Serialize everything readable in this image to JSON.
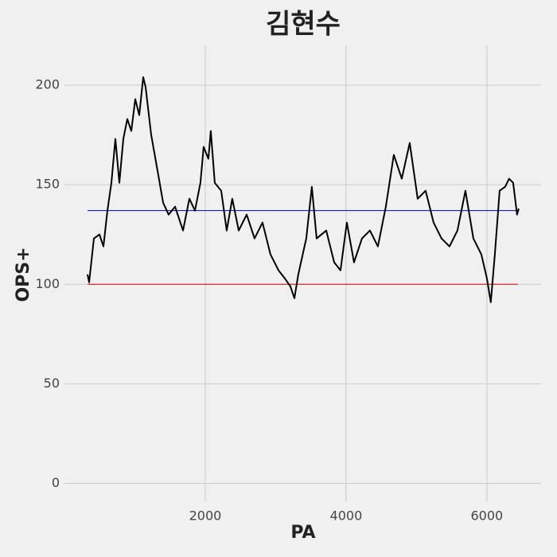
{
  "chart_data": {
    "type": "line",
    "title": "김현수",
    "xlabel": "PA",
    "ylabel": "OPS+",
    "xlim": [
      0,
      6770
    ],
    "ylim": [
      -9,
      220
    ],
    "xticks": [
      2000,
      4000,
      6000
    ],
    "yticks": [
      0,
      50,
      100,
      150,
      200
    ],
    "grid": true,
    "series": [
      {
        "color": "#000000",
        "x": [
          328,
          350,
          418,
          497,
          554,
          610,
          667,
          723,
          780,
          836,
          893,
          949,
          1006,
          1062,
          1119,
          1153,
          1232,
          1322,
          1401,
          1480,
          1571,
          1684,
          1774,
          1853,
          1932,
          1977,
          2045,
          2079,
          2135,
          2226,
          2305,
          2384,
          2475,
          2588,
          2700,
          2813,
          2926,
          3040,
          3130,
          3209,
          3266,
          3322,
          3435,
          3514,
          3582,
          3718,
          3831,
          3921,
          4011,
          4113,
          4226,
          4339,
          4452,
          4565,
          4678,
          4791,
          4904,
          5017,
          5130,
          5243,
          5356,
          5469,
          5582,
          5695,
          5808,
          5921,
          6000,
          6056,
          6113,
          6181,
          6260,
          6316,
          6373,
          6429,
          6452
        ],
        "values": [
          105,
          101,
          123,
          125,
          119,
          137,
          151,
          173,
          151,
          173,
          183,
          177,
          193,
          185,
          204,
          199,
          175,
          157,
          141,
          135,
          139,
          127,
          143,
          137,
          151,
          169,
          163,
          177,
          151,
          147,
          127,
          143,
          127,
          135,
          123,
          131,
          115,
          107,
          103,
          99,
          93,
          105,
          123,
          149,
          123,
          127,
          111,
          107,
          131,
          111,
          123,
          127,
          119,
          139,
          165,
          153,
          171,
          143,
          147,
          131,
          123,
          119,
          127,
          147,
          123,
          115,
          103,
          91,
          115,
          147,
          149,
          153,
          151,
          135,
          138
        ]
      }
    ],
    "hlines": [
      {
        "y": 137,
        "x": [
          328,
          6440
        ],
        "color": "#0000aa"
      },
      {
        "y": 100,
        "x": [
          328,
          6440
        ],
        "color": "#cc0000"
      }
    ]
  }
}
